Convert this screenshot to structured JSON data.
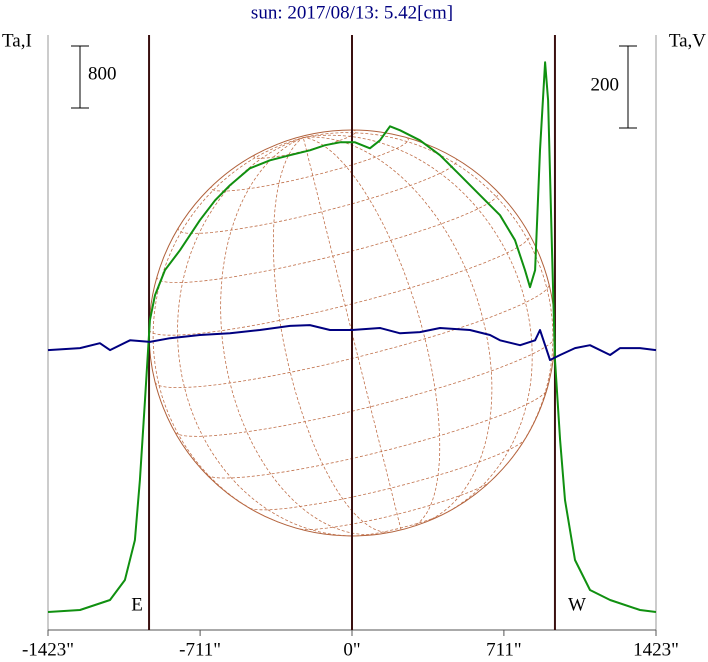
{
  "chart_data": {
    "type": "line",
    "title": "sun: 2017/08/13: 5.42[cm]",
    "y_label": "Ta,I",
    "y2_label": "Ta,V",
    "xlim": [
      -1423,
      1423
    ],
    "ylim": [
      0,
      7680
    ],
    "y2lim": [
      -683,
      769
    ],
    "xticks": [
      {
        "value": -1423,
        "label": "-1423\""
      },
      {
        "value": -711,
        "label": "-711\""
      },
      {
        "value": 0,
        "label": "0\""
      },
      {
        "value": 711,
        "label": "711\""
      },
      {
        "value": 1423,
        "label": "1423\""
      }
    ],
    "scale_bars": [
      {
        "value": 800,
        "axis": "y"
      },
      {
        "value": 200,
        "axis": "y2"
      }
    ],
    "vlines": [
      {
        "x": -950,
        "label": "E"
      },
      {
        "x": 0
      },
      {
        "x": 950,
        "label": "W"
      }
    ],
    "series": [
      {
        "name": "Ta,I",
        "color": "#109010",
        "axis": "y",
        "x": [
          -1423,
          -1273,
          -1133,
          -1063,
          -1016,
          -993,
          -969,
          -946,
          -922,
          -876,
          -805,
          -712,
          -641,
          -571,
          -478,
          -384,
          -290,
          -197,
          -126,
          -56,
          14,
          84,
          131,
          178,
          225,
          318,
          412,
          506,
          599,
          693,
          763,
          810,
          833,
          857,
          880,
          904,
          918,
          936,
          950,
          974,
          997,
          1044,
          1114,
          1208,
          1348,
          1423
        ],
        "values": [
          232,
          258,
          387,
          645,
          1161,
          1935,
          2967,
          3999,
          4322,
          4644,
          4902,
          5289,
          5547,
          5741,
          5960,
          6063,
          6128,
          6192,
          6257,
          6295,
          6295,
          6218,
          6321,
          6502,
          6450,
          6321,
          6128,
          5870,
          5612,
          5354,
          5031,
          4644,
          4425,
          4644,
          6192,
          7327,
          6837,
          4902,
          3483,
          2451,
          1677,
          903,
          516,
          387,
          258,
          232
        ]
      },
      {
        "name": "Ta,V",
        "color": "#000080",
        "axis": "y2",
        "x": [
          -1423,
          -1273,
          -1180,
          -1133,
          -1039,
          -946,
          -852,
          -712,
          -571,
          -431,
          -290,
          -197,
          -103,
          0,
          131,
          225,
          318,
          412,
          552,
          646,
          693,
          787,
          857,
          880,
          904,
          927,
          974,
          1044,
          1114,
          1208,
          1255,
          1348,
          1423
        ],
        "values": [
          0,
          5,
          17,
          0,
          24,
          20,
          29,
          37,
          41,
          49,
          59,
          61,
          49,
          49,
          54,
          41,
          44,
          54,
          49,
          37,
          24,
          12,
          24,
          49,
          12,
          -24,
          -12,
          5,
          12,
          -12,
          5,
          5,
          0
        ]
      }
    ]
  }
}
